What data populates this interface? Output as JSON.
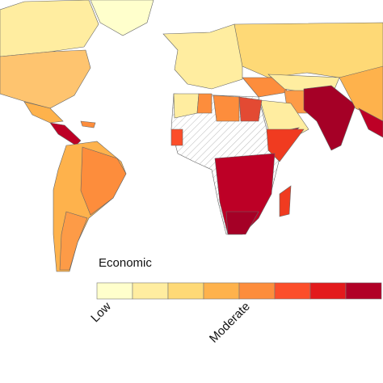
{
  "legend": {
    "title": "Economic",
    "colors": [
      "#ffffcc",
      "#ffeda0",
      "#fed976",
      "#feb24c",
      "#fd8d3c",
      "#fc4e2a",
      "#e31a1c",
      "#b10026"
    ],
    "labels": [
      "Low",
      "Moderate"
    ]
  }
}
